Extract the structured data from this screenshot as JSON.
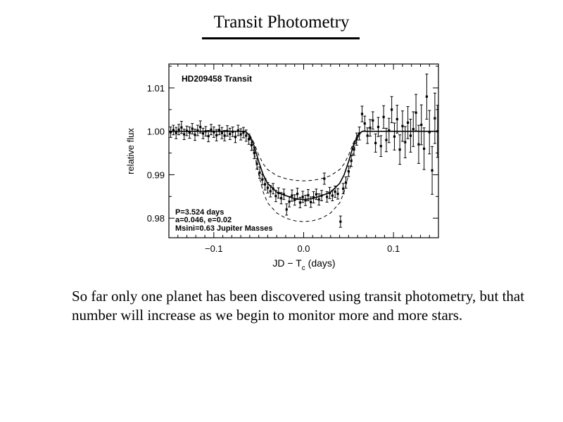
{
  "slide": {
    "title": "Transit Photometry",
    "body": "So far only one planet has been discovered using transit photometry, but that number will increase as we begin to monitor more and more stars."
  },
  "chart_data": {
    "type": "scatter",
    "title": "HD209458 Transit",
    "xlabel": "JD − T",
    "xlabel_sub": "c",
    "xlabel_suffix": " (days)",
    "ylabel": "relative flux",
    "xlim": [
      -0.15,
      0.15
    ],
    "ylim": [
      0.9755,
      1.0155
    ],
    "x_ticks": [
      -0.1,
      0.0,
      0.1
    ],
    "x_tick_labels": [
      "−0.1",
      "0.0",
      "0.1"
    ],
    "y_ticks": [
      0.98,
      0.99,
      1.0,
      1.01
    ],
    "y_tick_labels": [
      "0.98",
      "0.99",
      "1.00",
      "1.01"
    ],
    "annotations": [
      "P=3.524 days",
      "a=0.046, e=0.02",
      "Msini=0.63 Jupiter Masses"
    ],
    "grid": false,
    "series": [
      {
        "style": "points-with-error-bars",
        "points": [
          [
            -0.148,
            0.9998,
            0.0012
          ],
          [
            -0.145,
            1.0003,
            0.0011
          ],
          [
            -0.142,
            0.9996,
            0.0013
          ],
          [
            -0.139,
            1.0004,
            0.0012
          ],
          [
            -0.136,
            1.0009,
            0.0014
          ],
          [
            -0.133,
            0.9993,
            0.0012
          ],
          [
            -0.13,
            1.0001,
            0.0011
          ],
          [
            -0.127,
            0.9997,
            0.0013
          ],
          [
            -0.124,
            1.0006,
            0.0012
          ],
          [
            -0.121,
            0.9992,
            0.0013
          ],
          [
            -0.118,
            1.0002,
            0.0012
          ],
          [
            -0.115,
            1.001,
            0.0014
          ],
          [
            -0.112,
            0.9995,
            0.0012
          ],
          [
            -0.109,
            1.0,
            0.0011
          ],
          [
            -0.106,
            0.9989,
            0.0013
          ],
          [
            -0.103,
            1.0004,
            0.0012
          ],
          [
            -0.1,
            0.9998,
            0.0012
          ],
          [
            -0.097,
            0.9991,
            0.0013
          ],
          [
            -0.094,
            1.0003,
            0.0011
          ],
          [
            -0.091,
            0.9996,
            0.0013
          ],
          [
            -0.088,
            0.999,
            0.0012
          ],
          [
            -0.085,
            1.0001,
            0.0012
          ],
          [
            -0.082,
            0.9994,
            0.0013
          ],
          [
            -0.079,
            0.9999,
            0.0011
          ],
          [
            -0.076,
            0.9987,
            0.0013
          ],
          [
            -0.073,
            1.0002,
            0.0012
          ],
          [
            -0.07,
            0.9993,
            0.0013
          ],
          [
            -0.067,
            0.9997,
            0.0012
          ],
          [
            -0.064,
            0.999,
            0.0013
          ],
          [
            -0.061,
            0.9982,
            0.0012
          ],
          [
            -0.058,
            0.9968,
            0.0012
          ],
          [
            -0.055,
            0.995,
            0.0013
          ],
          [
            -0.052,
            0.9925,
            0.0012
          ],
          [
            -0.049,
            0.9905,
            0.0013
          ],
          [
            -0.046,
            0.9889,
            0.0012
          ],
          [
            -0.043,
            0.9878,
            0.0013
          ],
          [
            -0.04,
            0.987,
            0.0012
          ],
          [
            -0.037,
            0.9862,
            0.0013
          ],
          [
            -0.034,
            0.9868,
            0.0012
          ],
          [
            -0.031,
            0.9851,
            0.0013
          ],
          [
            -0.028,
            0.9858,
            0.0012
          ],
          [
            -0.025,
            0.9846,
            0.0013
          ],
          [
            -0.022,
            0.9855,
            0.0012
          ],
          [
            -0.019,
            0.982,
            0.0013
          ],
          [
            -0.016,
            0.9838,
            0.0012
          ],
          [
            -0.013,
            0.9852,
            0.0013
          ],
          [
            -0.01,
            0.9842,
            0.0012
          ],
          [
            -0.007,
            0.9856,
            0.0013
          ],
          [
            -0.004,
            0.9836,
            0.0012
          ],
          [
            -0.001,
            0.9849,
            0.0013
          ],
          [
            0.002,
            0.9841,
            0.0012
          ],
          [
            0.005,
            0.9853,
            0.0013
          ],
          [
            0.008,
            0.9837,
            0.0012
          ],
          [
            0.011,
            0.9848,
            0.0013
          ],
          [
            0.014,
            0.9855,
            0.0012
          ],
          [
            0.017,
            0.9843,
            0.0013
          ],
          [
            0.02,
            0.9852,
            0.0012
          ],
          [
            0.023,
            0.9891,
            0.0013
          ],
          [
            0.026,
            0.9849,
            0.0012
          ],
          [
            0.029,
            0.9858,
            0.0013
          ],
          [
            0.032,
            0.9852,
            0.0012
          ],
          [
            0.035,
            0.9861,
            0.0013
          ],
          [
            0.038,
            0.9856,
            0.0012
          ],
          [
            0.041,
            0.9792,
            0.0013
          ],
          [
            0.044,
            0.9868,
            0.0012
          ],
          [
            0.047,
            0.9882,
            0.0013
          ],
          [
            0.05,
            0.9908,
            0.0012
          ],
          [
            0.053,
            0.9932,
            0.0013
          ],
          [
            0.056,
            0.9958,
            0.0013
          ],
          [
            0.059,
            0.9982,
            0.0014
          ],
          [
            0.062,
            0.9995,
            0.0015
          ],
          [
            0.065,
            1.004,
            0.0018
          ],
          [
            0.068,
            1.0018,
            0.0017
          ],
          [
            0.071,
            0.999,
            0.0018
          ],
          [
            0.074,
            1.0008,
            0.0019
          ],
          [
            0.077,
            1.0025,
            0.002
          ],
          [
            0.08,
            0.9973,
            0.0021
          ],
          [
            0.083,
            1.001,
            0.0022
          ],
          [
            0.086,
            0.9966,
            0.0024
          ],
          [
            0.089,
            1.0033,
            0.0026
          ],
          [
            0.092,
            0.998,
            0.0027
          ],
          [
            0.095,
            1.0002,
            0.0028
          ],
          [
            0.098,
            1.005,
            0.003
          ],
          [
            0.101,
            0.9988,
            0.0031
          ],
          [
            0.104,
            1.0028,
            0.0032
          ],
          [
            0.107,
            0.9958,
            0.0034
          ],
          [
            0.11,
            1.0012,
            0.0035
          ],
          [
            0.113,
            0.9975,
            0.0036
          ],
          [
            0.116,
            1.002,
            0.0037
          ],
          [
            0.119,
            0.999,
            0.0038
          ],
          [
            0.122,
            1.0005,
            0.004
          ],
          [
            0.125,
            1.0043,
            0.0042
          ],
          [
            0.128,
            0.997,
            0.0044
          ],
          [
            0.131,
            1.0015,
            0.0046
          ],
          [
            0.134,
            0.996,
            0.0048
          ],
          [
            0.137,
            1.008,
            0.0052
          ],
          [
            0.14,
            0.9998,
            0.005
          ],
          [
            0.143,
            0.991,
            0.0055
          ],
          [
            0.146,
            1.003,
            0.0058
          ],
          [
            0.149,
            1.0,
            0.006
          ]
        ]
      },
      {
        "style": "solid",
        "x": [
          -0.15,
          -0.065,
          -0.06,
          -0.055,
          -0.05,
          -0.045,
          -0.04,
          -0.03,
          -0.02,
          -0.01,
          0.0,
          0.01,
          0.02,
          0.03,
          0.04,
          0.045,
          0.05,
          0.055,
          0.06,
          0.065,
          0.15
        ],
        "y": [
          1.0,
          1.0,
          0.999,
          0.9965,
          0.993,
          0.99,
          0.988,
          0.986,
          0.9852,
          0.9845,
          0.9843,
          0.9845,
          0.9852,
          0.986,
          0.988,
          0.99,
          0.993,
          0.9965,
          0.999,
          1.0,
          1.0
        ]
      },
      {
        "style": "dashed",
        "x": [
          -0.15,
          -0.065,
          -0.06,
          -0.055,
          -0.05,
          -0.045,
          -0.04,
          -0.03,
          -0.02,
          -0.01,
          0.0,
          0.01,
          0.02,
          0.03,
          0.04,
          0.045,
          0.05,
          0.055,
          0.06,
          0.065,
          0.15
        ],
        "y": [
          1.0,
          1.0,
          0.9992,
          0.9972,
          0.9945,
          0.9925,
          0.9912,
          0.9898,
          0.9891,
          0.9887,
          0.9886,
          0.9887,
          0.9891,
          0.9898,
          0.9912,
          0.9925,
          0.9945,
          0.9972,
          0.9992,
          1.0,
          1.0
        ]
      },
      {
        "style": "dashed",
        "x": [
          -0.15,
          -0.065,
          -0.06,
          -0.055,
          -0.05,
          -0.045,
          -0.04,
          -0.03,
          -0.02,
          -0.01,
          0.0,
          0.01,
          0.02,
          0.03,
          0.04,
          0.045,
          0.05,
          0.055,
          0.06,
          0.065,
          0.15
        ],
        "y": [
          1.0,
          1.0,
          0.9985,
          0.995,
          0.99,
          0.986,
          0.9835,
          0.9812,
          0.98,
          0.9794,
          0.9792,
          0.9794,
          0.98,
          0.9812,
          0.9835,
          0.986,
          0.99,
          0.995,
          0.9985,
          1.0,
          1.0
        ]
      }
    ]
  }
}
